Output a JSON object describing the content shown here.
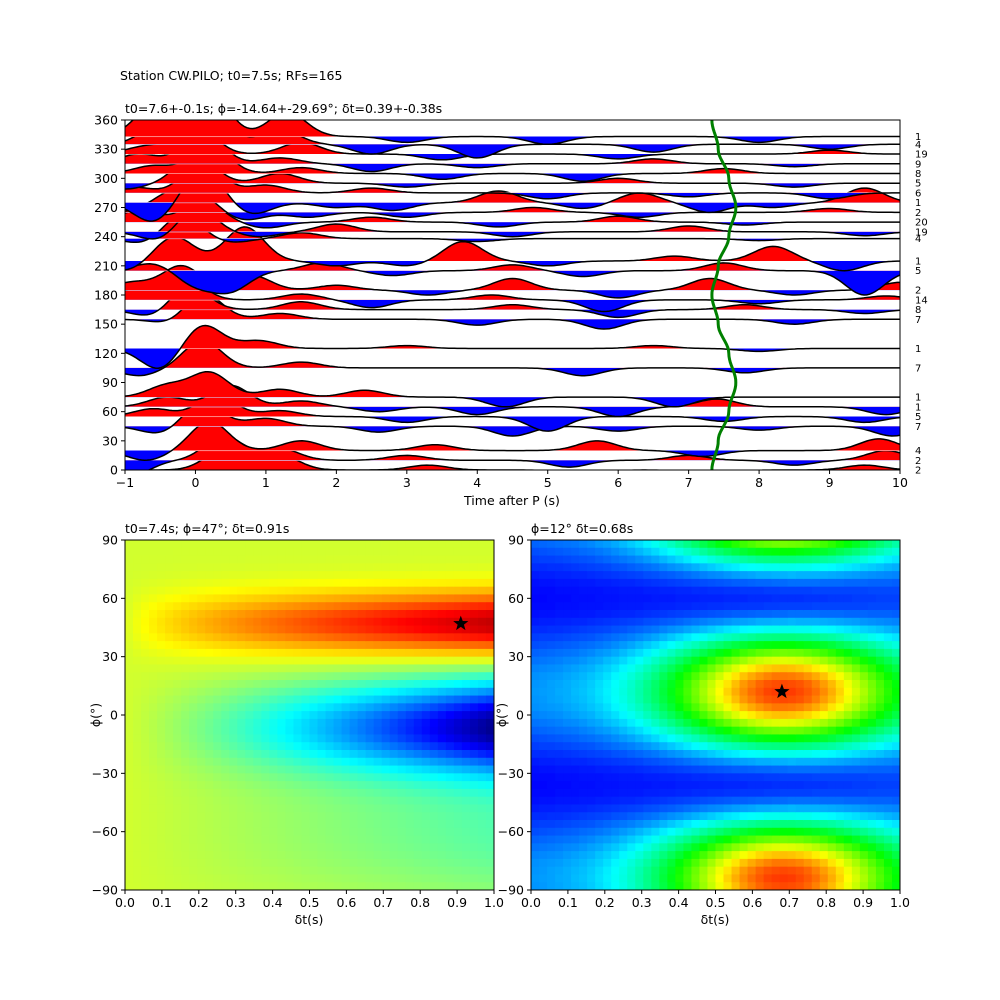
{
  "figure_title": "Station CW.PILO; t0=7.5s; RFs=165",
  "colors": {
    "positive": "#ff0000",
    "negative": "#0000ff",
    "curve": "#008000",
    "trace": "#000000"
  },
  "chart_data": [
    {
      "type": "area",
      "title": "t0=7.6+-0.1s; ϕ=-14.64+-29.69°; δt=0.39+-0.38s",
      "xlabel": "Time after P (s)",
      "ylabel": "",
      "xlim": [
        -1,
        10
      ],
      "ylim": [
        0,
        360
      ],
      "xticks": [
        -1,
        0,
        1,
        2,
        3,
        4,
        5,
        6,
        7,
        8,
        9,
        10
      ],
      "yticks": [
        0,
        30,
        60,
        90,
        120,
        150,
        180,
        210,
        240,
        270,
        300,
        330,
        360
      ],
      "traces": [
        {
          "baz": 0,
          "count": "2",
          "peaks": [
            [
              0.4,
              20
            ],
            [
              1.2,
              15
            ],
            [
              3.3,
              5
            ],
            [
              5.5,
              -5
            ],
            [
              7.3,
              -8
            ],
            [
              9.5,
              5
            ]
          ]
        },
        {
          "baz": 10,
          "count": "2",
          "peaks": [
            [
              -0.9,
              -15
            ],
            [
              0.4,
              25
            ],
            [
              1.2,
              12
            ],
            [
              3.0,
              5
            ],
            [
              5.3,
              -7
            ],
            [
              7.0,
              5
            ],
            [
              8.5,
              -5
            ],
            [
              9.8,
              10
            ]
          ]
        },
        {
          "baz": 20,
          "count": "4",
          "peaks": [
            [
              -0.7,
              -10
            ],
            [
              0.2,
              30
            ],
            [
              1.5,
              10
            ],
            [
              3.4,
              6
            ],
            [
              5.7,
              10
            ],
            [
              7.2,
              -6
            ],
            [
              9.7,
              12
            ]
          ]
        },
        {
          "baz": 45,
          "count": "7",
          "peaks": [
            [
              -0.5,
              -8
            ],
            [
              0.1,
              25
            ],
            [
              1.0,
              8
            ],
            [
              2.6,
              -6
            ],
            [
              4.5,
              -10
            ],
            [
              6.0,
              -5
            ],
            [
              8.0,
              -4
            ],
            [
              9.9,
              -10
            ]
          ]
        },
        {
          "baz": 55,
          "count": "5",
          "peaks": [
            [
              -0.6,
              8
            ],
            [
              0.3,
              22
            ],
            [
              1.2,
              6
            ],
            [
              3.0,
              -6
            ],
            [
              5.0,
              -15
            ],
            [
              7.5,
              -5
            ],
            [
              9.5,
              -6
            ]
          ]
        },
        {
          "baz": 65,
          "count": "1",
          "peaks": [
            [
              -0.4,
              10
            ],
            [
              0.5,
              22
            ],
            [
              1.5,
              6
            ],
            [
              2.6,
              -5
            ],
            [
              4.0,
              -8
            ],
            [
              6.0,
              -10
            ],
            [
              7.4,
              8
            ],
            [
              9.8,
              -8
            ]
          ]
        },
        {
          "baz": 75,
          "count": "1",
          "peaks": [
            [
              -0.4,
              12
            ],
            [
              0.2,
              25
            ],
            [
              1.2,
              8
            ],
            [
              2.4,
              7
            ],
            [
              4.4,
              -10
            ],
            [
              6.8,
              -10
            ]
          ]
        },
        {
          "baz": 105,
          "count": "7",
          "peaks": [
            [
              -0.8,
              -8
            ],
            [
              0.1,
              28
            ],
            [
              1.5,
              6
            ],
            [
              5.5,
              -8
            ],
            [
              7.8,
              -5
            ]
          ]
        },
        {
          "baz": 125,
          "count": "1",
          "peaks": [
            [
              -0.5,
              -22
            ],
            [
              0.1,
              25
            ],
            [
              0.9,
              8
            ],
            [
              3.0,
              3
            ],
            [
              6.5,
              3
            ],
            [
              8.0,
              -3
            ]
          ]
        },
        {
          "baz": 155,
          "count": "7",
          "peaks": [
            [
              -0.3,
              -6
            ],
            [
              0.1,
              28
            ],
            [
              1.2,
              6
            ],
            [
              4.0,
              -6
            ],
            [
              5.8,
              -10
            ],
            [
              8.5,
              -5
            ]
          ]
        },
        {
          "baz": 165,
          "count": "8",
          "peaks": [
            [
              -0.6,
              -8
            ],
            [
              -0.1,
              25
            ],
            [
              1.5,
              8
            ],
            [
              4.5,
              5
            ],
            [
              6.0,
              -8
            ],
            [
              7.8,
              5
            ],
            [
              9.5,
              -4
            ]
          ]
        },
        {
          "baz": 175,
          "count": "14",
          "peaks": [
            [
              -0.9,
              10
            ],
            [
              -0.2,
              28
            ],
            [
              1.5,
              6
            ],
            [
              2.5,
              -8
            ],
            [
              4.2,
              5
            ],
            [
              5.8,
              -12
            ],
            [
              8.0,
              -4
            ],
            [
              9.8,
              4
            ]
          ]
        },
        {
          "baz": 185,
          "count": "2",
          "peaks": [
            [
              -0.9,
              8
            ],
            [
              -0.2,
              25
            ],
            [
              0.8,
              15
            ],
            [
              2.0,
              5
            ],
            [
              3.3,
              -5
            ],
            [
              4.5,
              12
            ],
            [
              6.0,
              -8
            ],
            [
              7.3,
              12
            ],
            [
              8.5,
              -5
            ],
            [
              10.0,
              8
            ]
          ]
        },
        {
          "baz": 205,
          "count": "5",
          "peaks": [
            [
              -0.6,
              8
            ],
            [
              0.0,
              -15
            ],
            [
              0.5,
              -20
            ],
            [
              1.8,
              8
            ],
            [
              2.8,
              -5
            ],
            [
              4.5,
              6
            ],
            [
              5.5,
              -6
            ],
            [
              7.5,
              8
            ],
            [
              9.5,
              -25
            ]
          ]
        },
        {
          "baz": 215,
          "count": "1",
          "peaks": [
            [
              -1.0,
              -10
            ],
            [
              -0.3,
              25
            ],
            [
              0.7,
              35
            ],
            [
              2.0,
              -5
            ],
            [
              3.0,
              -5
            ],
            [
              3.8,
              20
            ],
            [
              5.0,
              -5
            ],
            [
              6.8,
              5
            ],
            [
              8.2,
              15
            ],
            [
              9.2,
              -10
            ]
          ]
        },
        {
          "baz": 238,
          "count": "4",
          "peaks": [
            [
              -0.7,
              -6
            ],
            [
              -0.2,
              25
            ],
            [
              0.5,
              -4
            ],
            [
              1.5,
              6
            ],
            [
              4.0,
              -3
            ],
            [
              8.0,
              -2
            ]
          ]
        },
        {
          "baz": 245,
          "count": "19",
          "peaks": [
            [
              -0.5,
              -10
            ],
            [
              0.0,
              25
            ],
            [
              0.9,
              -5
            ],
            [
              2.0,
              8
            ],
            [
              4.5,
              -5
            ],
            [
              7.0,
              6
            ],
            [
              9.5,
              -4
            ]
          ]
        },
        {
          "baz": 255,
          "count": "20",
          "peaks": [
            [
              -0.8,
              12
            ],
            [
              0.1,
              22
            ],
            [
              1.0,
              -6
            ],
            [
              2.5,
              5
            ],
            [
              4.3,
              -5
            ],
            [
              6.0,
              6
            ],
            [
              7.8,
              -3
            ]
          ]
        },
        {
          "baz": 265,
          "count": "2",
          "peaks": [
            [
              -0.4,
              15
            ],
            [
              0.0,
              20
            ],
            [
              0.7,
              -8
            ],
            [
              1.6,
              -5
            ],
            [
              3.0,
              -5
            ],
            [
              4.8,
              5
            ],
            [
              6.3,
              -5
            ],
            [
              9.0,
              4
            ]
          ]
        },
        {
          "baz": 275,
          "count": "1",
          "peaks": [
            [
              -0.6,
              -20
            ],
            [
              0.1,
              35
            ],
            [
              0.8,
              -12
            ],
            [
              2.0,
              -5
            ],
            [
              2.8,
              -8
            ],
            [
              4.3,
              12
            ],
            [
              5.5,
              -6
            ],
            [
              6.3,
              10
            ],
            [
              7.3,
              -10
            ],
            [
              8.2,
              -5
            ],
            [
              9.5,
              15
            ]
          ]
        },
        {
          "baz": 285,
          "count": "6",
          "peaks": [
            [
              -0.9,
              6
            ],
            [
              0.1,
              32
            ],
            [
              1.0,
              8
            ],
            [
              2.5,
              5
            ],
            [
              5.0,
              -6
            ],
            [
              7.0,
              -4
            ],
            [
              9.0,
              -6
            ]
          ]
        },
        {
          "baz": 295,
          "count": "5",
          "peaks": [
            [
              -1.0,
              -6
            ],
            [
              0.0,
              30
            ],
            [
              1.2,
              10
            ],
            [
              3.0,
              -4
            ],
            [
              6.0,
              5
            ],
            [
              8.5,
              -4
            ]
          ]
        },
        {
          "baz": 305,
          "count": "8",
          "peaks": [
            [
              -0.6,
              8
            ],
            [
              0.2,
              30
            ],
            [
              1.5,
              6
            ],
            [
              3.5,
              -6
            ],
            [
              5.5,
              -8
            ],
            [
              7.5,
              5
            ]
          ]
        },
        {
          "baz": 315,
          "count": "9",
          "peaks": [
            [
              -0.8,
              10
            ],
            [
              0.1,
              35
            ],
            [
              1.2,
              6
            ],
            [
              2.5,
              -8
            ],
            [
              4.0,
              -4
            ],
            [
              6.5,
              5
            ],
            [
              8.5,
              -3
            ]
          ]
        },
        {
          "baz": 325,
          "count": "19",
          "peaks": [
            [
              -0.7,
              8
            ],
            [
              0.0,
              30
            ],
            [
              1.5,
              12
            ],
            [
              3.5,
              -6
            ],
            [
              6.0,
              -5
            ],
            [
              9.0,
              4
            ]
          ]
        },
        {
          "baz": 335,
          "count": "4",
          "peaks": [
            [
              -0.5,
              20
            ],
            [
              0.2,
              35
            ],
            [
              1.2,
              15
            ],
            [
              2.5,
              -10
            ],
            [
              4.0,
              -14
            ],
            [
              6.5,
              -8
            ],
            [
              9.0,
              -5
            ]
          ]
        },
        {
          "baz": 343,
          "count": "1",
          "peaks": [
            [
              -0.6,
              30
            ],
            [
              0.2,
              45
            ],
            [
              1.3,
              25
            ],
            [
              3.0,
              -6
            ],
            [
              5.0,
              -8
            ],
            [
              8.0,
              -6
            ]
          ]
        }
      ],
      "curve": {
        "name": "t0",
        "x": [
          7.33,
          7.42,
          7.57,
          7.67,
          7.57,
          7.42,
          7.33,
          7.42,
          7.57,
          7.67,
          7.57,
          7.42,
          7.33
        ],
        "y": [
          0,
          30,
          60,
          90,
          120,
          150,
          180,
          210,
          240,
          270,
          300,
          330,
          360
        ]
      }
    },
    {
      "type": "heatmap",
      "title": "t0=7.4s; ϕ=47°; δt=0.91s",
      "xlabel": "δt(s)",
      "ylabel": "ϕ(°)",
      "xlim": [
        0,
        1
      ],
      "ylim": [
        -90,
        90
      ],
      "xticks": [
        "0.0",
        "0.1",
        "0.2",
        "0.3",
        "0.4",
        "0.5",
        "0.6",
        "0.7",
        "0.8",
        "0.9",
        "1.0"
      ],
      "yticks": [
        "−90",
        "−60",
        "−30",
        "0",
        "30",
        "60",
        "90"
      ],
      "colormap": "jet",
      "best": {
        "dt": 0.91,
        "phi": 47
      }
    },
    {
      "type": "heatmap",
      "title": "ϕ=12° δt=0.68s",
      "xlabel": "δt(s)",
      "ylabel": "ϕ(°)",
      "xlim": [
        0,
        1
      ],
      "ylim": [
        -90,
        90
      ],
      "xticks": [
        "0.0",
        "0.1",
        "0.2",
        "0.3",
        "0.4",
        "0.5",
        "0.6",
        "0.7",
        "0.8",
        "0.9",
        "1.0"
      ],
      "yticks": [
        "−90",
        "−60",
        "−30",
        "0",
        "30",
        "60",
        "90"
      ],
      "colormap": "hsv",
      "best": {
        "dt": 0.68,
        "phi": 12
      }
    }
  ]
}
